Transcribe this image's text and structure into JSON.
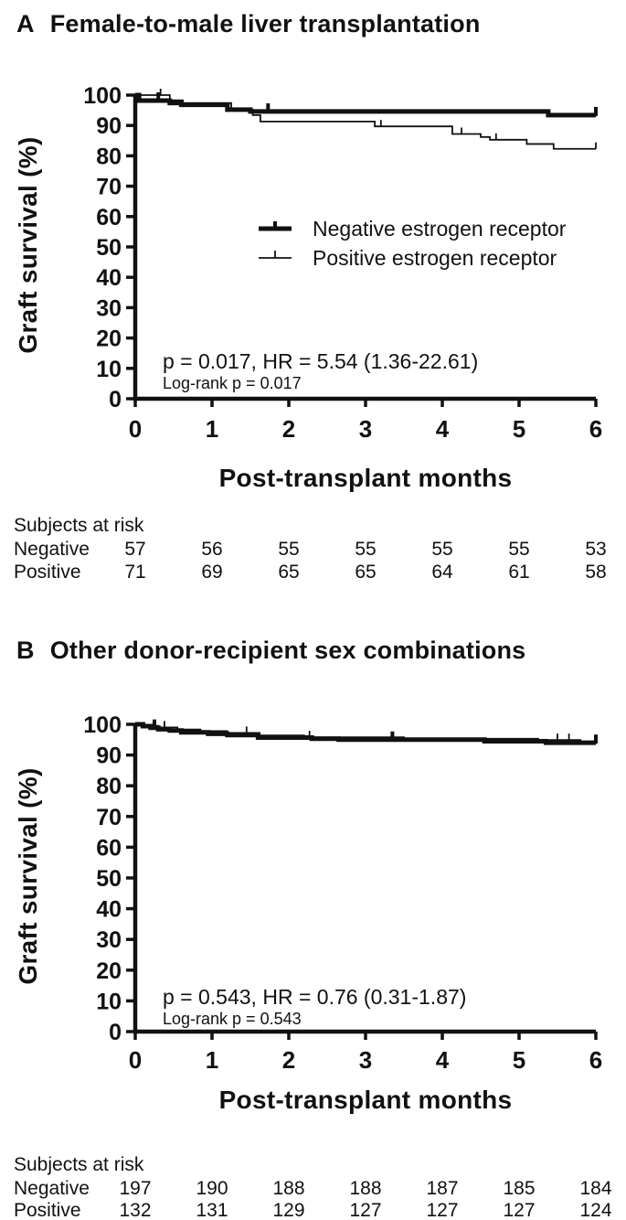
{
  "figure": {
    "background": "#ffffff",
    "ink_color": "#111111"
  },
  "chart_data": [
    {
      "panel_label": "A",
      "title": "Female-to-male liver transplantation",
      "type": "line",
      "subtype": "kaplan-meier-step",
      "xlabel": "Post-transplant months",
      "ylabel": "Graft survival (%)",
      "xlim": [
        0,
        6
      ],
      "ylim": [
        0,
        100
      ],
      "xticks": [
        0,
        1,
        2,
        3,
        4,
        5,
        6
      ],
      "yticks": [
        0,
        10,
        20,
        30,
        40,
        50,
        60,
        70,
        80,
        90,
        100
      ],
      "grid": false,
      "show_legend": true,
      "legend_position": "center-right",
      "annotation_line1": "p = 0.017, HR = 5.54 (1.36-22.61)",
      "annotation_line2": "Log-rank p = 0.017",
      "series": [
        {
          "name": "Negative estrogen receptor",
          "style": "thick",
          "points": [
            [
              0,
              100
            ],
            [
              0.05,
              98.2
            ],
            [
              0.45,
              97.4
            ],
            [
              0.6,
              96.8
            ],
            [
              1.2,
              95.2
            ],
            [
              1.5,
              94.6
            ],
            [
              5.38,
              93.4
            ],
            [
              6,
              93.4
            ]
          ],
          "censors": [
            [
              0.3,
              98.2
            ],
            [
              1.73,
              94.6
            ],
            [
              6,
              93.4
            ]
          ]
        },
        {
          "name": "Positive estrogen receptor",
          "style": "thin",
          "points": [
            [
              0,
              100
            ],
            [
              0.45,
              98.3
            ],
            [
              0.62,
              97.4
            ],
            [
              1.25,
              95.2
            ],
            [
              1.53,
              93.4
            ],
            [
              1.63,
              91.3
            ],
            [
              3.12,
              89.7
            ],
            [
              4.13,
              87.2
            ],
            [
              4.5,
              86.2
            ],
            [
              4.62,
              85.3
            ],
            [
              5.1,
              83.9
            ],
            [
              5.45,
              82.3
            ],
            [
              6,
              82.3
            ]
          ],
          "censors": [
            [
              0.33,
              100
            ],
            [
              3.2,
              89.7
            ],
            [
              4.25,
              87.2
            ],
            [
              4.7,
              85.3
            ],
            [
              6,
              82.3
            ]
          ]
        }
      ],
      "at_risk": {
        "header": "Subjects at risk",
        "rows": [
          {
            "label": "Negative",
            "values": [
              57,
              56,
              55,
              55,
              55,
              55,
              53
            ]
          },
          {
            "label": "Positive",
            "values": [
              71,
              69,
              65,
              65,
              64,
              61,
              58
            ]
          }
        ]
      }
    },
    {
      "panel_label": "B",
      "title": "Other donor-recipient sex combinations",
      "type": "line",
      "subtype": "kaplan-meier-step",
      "xlabel": "Post-transplant months",
      "ylabel": "Graft survival (%)",
      "xlim": [
        0,
        6
      ],
      "ylim": [
        0,
        100
      ],
      "xticks": [
        0,
        1,
        2,
        3,
        4,
        5,
        6
      ],
      "yticks": [
        0,
        10,
        20,
        30,
        40,
        50,
        60,
        70,
        80,
        90,
        100
      ],
      "grid": false,
      "show_legend": false,
      "annotation_line1": "p = 0.543,  HR = 0.76 (0.31-1.87)",
      "annotation_line2": "Log-rank p = 0.543",
      "series": [
        {
          "name": "Negative estrogen receptor",
          "style": "thick",
          "points": [
            [
              0,
              100
            ],
            [
              0.1,
              99.4
            ],
            [
              0.2,
              98.9
            ],
            [
              0.3,
              98.4
            ],
            [
              0.45,
              98
            ],
            [
              0.6,
              97.4
            ],
            [
              0.95,
              96.9
            ],
            [
              1.2,
              96.5
            ],
            [
              1.6,
              95.7
            ],
            [
              2.3,
              95.3
            ],
            [
              2.65,
              95
            ],
            [
              4.55,
              94.5
            ],
            [
              5.35,
              94
            ],
            [
              6,
              94
            ]
          ],
          "censors": [
            [
              0.25,
              98.9
            ],
            [
              3.35,
              95
            ],
            [
              6,
              94
            ]
          ]
        },
        {
          "name": "Positive estrogen receptor",
          "style": "thin",
          "points": [
            [
              0,
              100
            ],
            [
              0.12,
              99.5
            ],
            [
              0.3,
              99
            ],
            [
              0.55,
              98.3
            ],
            [
              0.85,
              97.8
            ],
            [
              1.2,
              97.2
            ],
            [
              1.62,
              96.4
            ],
            [
              2.2,
              95.8
            ],
            [
              3.5,
              95.3
            ],
            [
              5.25,
              94.9
            ],
            [
              5.8,
              94.3
            ],
            [
              6,
              94.3
            ]
          ],
          "censors": [
            [
              0.38,
              99
            ],
            [
              1.45,
              97.2
            ],
            [
              2.27,
              95.8
            ],
            [
              5.5,
              94.9
            ],
            [
              5.65,
              94.9
            ],
            [
              6,
              94.3
            ]
          ]
        }
      ],
      "at_risk": {
        "header": "Subjects at risk",
        "rows": [
          {
            "label": "Negative",
            "values": [
              197,
              190,
              188,
              188,
              187,
              185,
              184
            ]
          },
          {
            "label": "Positive",
            "values": [
              132,
              131,
              129,
              127,
              127,
              127,
              124
            ]
          }
        ]
      }
    }
  ]
}
